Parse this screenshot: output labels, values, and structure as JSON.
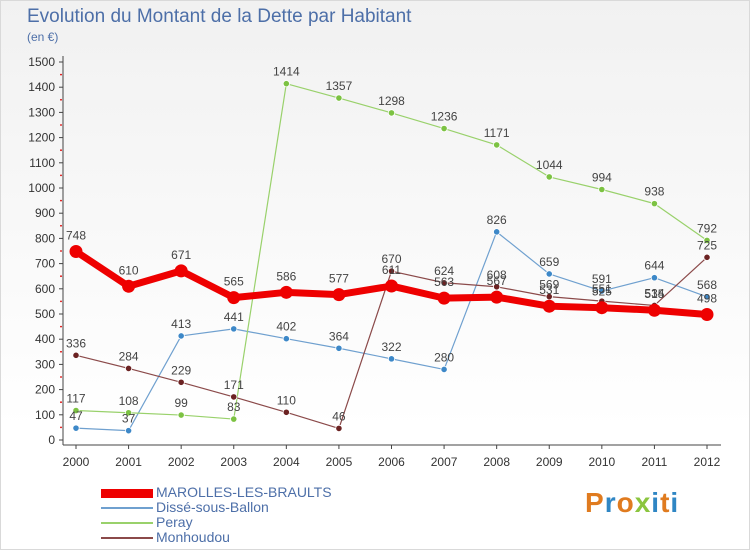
{
  "title": "Evolution du Montant de la Dette par Habitant",
  "subtitle": "(en €)",
  "logo": {
    "text": "Proxiti",
    "colors": [
      "#e07b1f",
      "#2f86c4",
      "#e07b1f",
      "#8bc53f",
      "#2f86c4",
      "#e07b1f",
      "#2f86c4"
    ]
  },
  "chart_data": {
    "type": "line",
    "title": "Evolution du Montant de la Dette par Habitant",
    "subtitle": "(en €)",
    "x": [
      "2000",
      "2001",
      "2002",
      "2003",
      "2004",
      "2005",
      "2006",
      "2007",
      "2008",
      "2009",
      "2010",
      "2011",
      "2012"
    ],
    "ylim": [
      0,
      1500
    ],
    "yticks": [
      0,
      100,
      200,
      300,
      400,
      500,
      600,
      700,
      800,
      900,
      1000,
      1100,
      1200,
      1300,
      1400,
      1500
    ],
    "grid": false,
    "legend_position": "bottom-left",
    "series": [
      {
        "name": "Dissé-sous-Ballon",
        "color": "#6fa0cf",
        "point_color": "#3d88c8",
        "width": 1.2,
        "values": [
          47,
          37,
          413,
          441,
          402,
          364,
          322,
          280,
          826,
          659,
          591,
          644,
          568
        ],
        "labels": [
          "47",
          "37",
          "413",
          "441",
          "402",
          "364",
          "322",
          "280",
          "826",
          "659",
          "591",
          "644",
          "568"
        ]
      },
      {
        "name": "Peray",
        "color": "#99d16b",
        "point_color": "#7cc242",
        "width": 1.2,
        "values": [
          117,
          108,
          99,
          83,
          1414,
          1357,
          1298,
          1236,
          1171,
          1044,
          994,
          938,
          792
        ],
        "labels": [
          "117",
          "108",
          "99",
          "83",
          "1414",
          "1357",
          "1298",
          "1236",
          "1171",
          "1044",
          "994",
          "938",
          "792"
        ]
      },
      {
        "name": "Monhoudou",
        "color": "#8b4a4a",
        "point_color": "#6b2222",
        "width": 1.2,
        "values": [
          336,
          284,
          229,
          171,
          110,
          46,
          670,
          624,
          608,
          569,
          551,
          534,
          725
        ],
        "labels": [
          "336",
          "284",
          "229",
          "171",
          "110",
          "46",
          "670",
          "624",
          "608",
          "569",
          "551",
          "534",
          "725"
        ]
      },
      {
        "name": "MAROLLES-LES-BRAULTS",
        "color": "#ee0000",
        "point_color": "#ee0000",
        "width": 7,
        "values": [
          748,
          610,
          671,
          565,
          586,
          577,
          611,
          563,
          567,
          531,
          525,
          515,
          498
        ],
        "labels": [
          "748",
          "610",
          "671",
          "565",
          "586",
          "577",
          "611",
          "563",
          "567",
          "531",
          "525",
          "515",
          "498"
        ]
      }
    ],
    "legend": [
      {
        "name": "MAROLLES-LES-BRAULTS",
        "color": "#ee0000",
        "thickness": 9
      },
      {
        "name": "Dissé-sous-Ballon",
        "color": "#6fa0cf",
        "thickness": 2
      },
      {
        "name": "Peray",
        "color": "#99d16b",
        "thickness": 2
      },
      {
        "name": "Monhoudou",
        "color": "#8b4a4a",
        "thickness": 2
      }
    ]
  }
}
